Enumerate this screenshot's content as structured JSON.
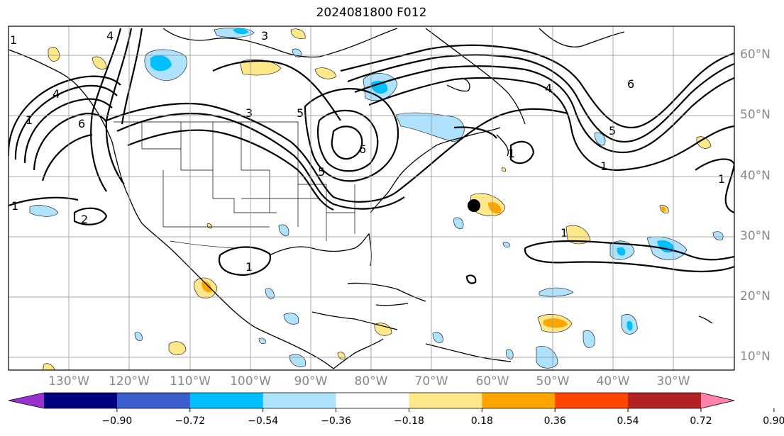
{
  "title": "2024081800 F012",
  "lat_labels": [
    "60°N",
    "50°N",
    "40°N",
    "30°N",
    "20°N",
    "10°N"
  ],
  "lon_labels": [
    "130°W",
    "120°W",
    "110°W",
    "100°W",
    "90°W",
    "80°W",
    "70°W",
    "60°W",
    "50°W",
    "40°W",
    "30°W"
  ],
  "contour_labels": [
    "1",
    "2",
    "3",
    "4",
    "5",
    "6"
  ],
  "colorbar": {
    "ticks": [
      "−0.90",
      "−0.72",
      "−0.54",
      "−0.36",
      "−0.18",
      "0.18",
      "0.36",
      "0.54",
      "0.72",
      "0.90"
    ],
    "colors": [
      "#9b30d0",
      "#000080",
      "#3a5fcd",
      "#00bfff",
      "#aee2ff",
      "#ffffff",
      "#ffe88a",
      "#ffa500",
      "#ff4500",
      "#b22222",
      "#ff82ab"
    ]
  },
  "marker": {
    "type": "circle",
    "color": "#000000"
  }
}
